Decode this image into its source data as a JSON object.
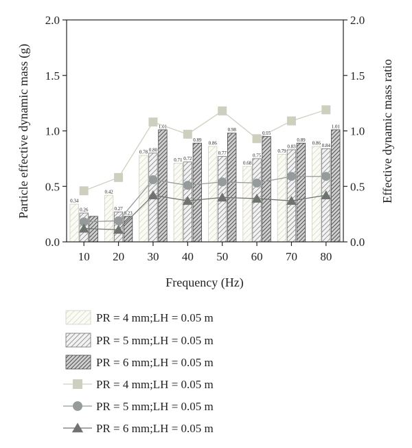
{
  "chart_data": {
    "type": "bar",
    "title": "",
    "xlabel": "Frequency (Hz)",
    "ylabel": "Particle effective dynamic mass (g)",
    "y2label": "Effective dynamic mass ratio",
    "categories": [
      "10",
      "20",
      "30",
      "40",
      "50",
      "60",
      "70",
      "80"
    ],
    "ylim": [
      0,
      2.0
    ],
    "y2lim": [
      0,
      2.0
    ],
    "yticks": [
      "0.0",
      "0.5",
      "1.0",
      "1.5",
      "2.0"
    ],
    "y2ticks": [
      "0.0",
      "0.5",
      "1.0",
      "1.5",
      "2.0"
    ],
    "grid": false,
    "legend_position": "bottom",
    "bar_series": [
      {
        "name": "PR = 4 mm;LH = 0.05 m",
        "values": [
          0.34,
          0.42,
          0.78,
          0.71,
          0.86,
          0.68,
          0.79,
          0.86
        ],
        "labels": [
          "0.34",
          "0.42",
          "0.78",
          "0.71",
          "0.86",
          "0.68",
          "0.79",
          "0.86"
        ],
        "color": "#d8d8c8"
      },
      {
        "name": "PR = 5 mm;LH = 0.05 m",
        "values": [
          0.26,
          0.27,
          0.8,
          0.72,
          0.77,
          0.75,
          0.83,
          0.84
        ],
        "labels": [
          "0.26",
          "0.27",
          "0.80",
          "0.72",
          "0.77",
          "0.75",
          "0.83",
          "0.84"
        ],
        "color": "#8c8c8c"
      },
      {
        "name": "PR = 6 mm;LH = 0.05 m",
        "values": [
          0.23,
          0.23,
          1.01,
          0.89,
          0.98,
          0.95,
          0.89,
          1.01
        ],
        "labels": [
          "",
          "0.23",
          "1.01",
          "0.89",
          "0.98",
          "0.95",
          "0.89",
          "1.01"
        ],
        "color": "#555555"
      }
    ],
    "line_series": [
      {
        "name": "PR = 4 mm;LH = 0.05 m",
        "values": [
          0.46,
          0.58,
          1.08,
          0.97,
          1.18,
          0.93,
          1.09,
          1.19
        ],
        "marker": "square",
        "color": "#cfcfc0"
      },
      {
        "name": "PR = 5 mm;LH = 0.05 m",
        "values": [
          0.18,
          0.19,
          0.56,
          0.51,
          0.54,
          0.53,
          0.59,
          0.59
        ],
        "marker": "circle",
        "color": "#959b9b"
      },
      {
        "name": "PR = 6 mm;LH = 0.05 m",
        "values": [
          0.12,
          0.11,
          0.42,
          0.37,
          0.4,
          0.39,
          0.37,
          0.42
        ],
        "marker": "triangle",
        "color": "#6e736e"
      }
    ]
  }
}
